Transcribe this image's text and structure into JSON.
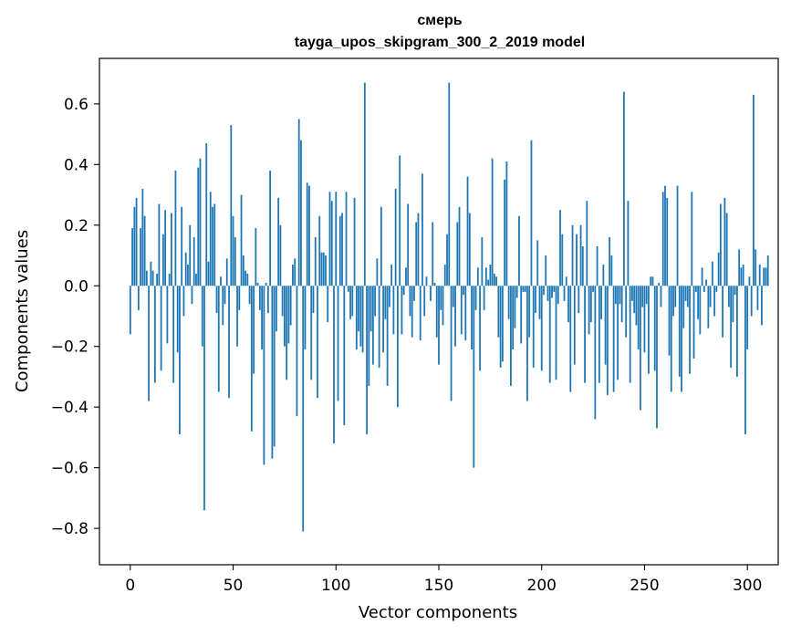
{
  "chart_data": {
    "type": "bar",
    "title": "смерь",
    "subtitle": "tayga_upos_skipgram_300_2_2019 model",
    "xlabel": "Vector components",
    "ylabel": "Components values",
    "xlim": [
      -15,
      315
    ],
    "ylim": [
      -0.92,
      0.75
    ],
    "xticks": [
      0,
      50,
      100,
      150,
      200,
      250,
      300
    ],
    "xtick_labels": [
      "0",
      "50",
      "100",
      "150",
      "200",
      "250",
      "300"
    ],
    "yticks": [
      -0.8,
      -0.6,
      -0.4,
      -0.2,
      0.0,
      0.2,
      0.4,
      0.6
    ],
    "ytick_labels": [
      "−0.8",
      "−0.6",
      "−0.4",
      "−0.2",
      "0.0",
      "0.2",
      "0.4",
      "0.6"
    ],
    "bar_color": "#1f77b4",
    "grid": false,
    "series": [
      {
        "values": [
          -0.16,
          0.19,
          0.26,
          0.29,
          -0.08,
          0.19,
          0.32,
          0.23,
          0.05,
          -0.38,
          0.08,
          0.05,
          -0.32,
          0.04,
          0.27,
          -0.28,
          0.17,
          0.25,
          -0.19,
          0.04,
          0.24,
          -0.32,
          0.38,
          -0.22,
          -0.49,
          0.26,
          -0.1,
          0.11,
          0.07,
          0.2,
          -0.06,
          0.16,
          0.04,
          0.39,
          0.42,
          -0.2,
          -0.74,
          0.47,
          0.08,
          0.31,
          0.26,
          0.27,
          -0.09,
          -0.35,
          0.03,
          -0.13,
          -0.06,
          0.09,
          -0.37,
          0.53,
          0.23,
          0.16,
          -0.2,
          -0.08,
          0.3,
          0.1,
          0.05,
          0.04,
          -0.06,
          -0.48,
          -0.29,
          0.19,
          0.01,
          -0.08,
          -0.21,
          -0.59,
          0.01,
          -0.09,
          0.38,
          -0.57,
          -0.53,
          -0.15,
          0.29,
          0.2,
          -0.1,
          -0.2,
          -0.31,
          -0.19,
          -0.13,
          0.07,
          0.09,
          -0.43,
          0.55,
          0.48,
          -0.81,
          -0.21,
          0.34,
          0.33,
          -0.31,
          -0.09,
          0.16,
          -0.37,
          0.23,
          0.11,
          0.11,
          0.1,
          -0.12,
          0.31,
          0.28,
          -0.52,
          0.31,
          -0.38,
          0.23,
          0.24,
          -0.46,
          0.31,
          -0.02,
          -0.11,
          -0.1,
          0.29,
          -0.21,
          -0.15,
          -0.2,
          -0.22,
          0.67,
          -0.49,
          -0.33,
          -0.15,
          -0.26,
          -0.1,
          0.09,
          -0.27,
          0.26,
          -0.22,
          -0.11,
          -0.33,
          -0.07,
          0.07,
          -0.16,
          0.32,
          -0.4,
          0.43,
          -0.16,
          -0.03,
          0.06,
          0.27,
          -0.1,
          -0.17,
          -0.05,
          0.21,
          0.24,
          -0.18,
          0.37,
          -0.1,
          0.03,
          0.0,
          -0.05,
          0.21,
          0.01,
          -0.17,
          -0.26,
          -0.08,
          -0.13,
          0.07,
          0.17,
          0.67,
          -0.38,
          -0.07,
          -0.2,
          0.21,
          0.26,
          -0.16,
          -0.03,
          -0.18,
          0.36,
          0.24,
          -0.21,
          -0.6,
          -0.08,
          0.06,
          -0.28,
          0.16,
          -0.08,
          0.06,
          0.02,
          0.07,
          0.42,
          0.04,
          0.03,
          -0.17,
          -0.27,
          -0.25,
          0.35,
          0.41,
          -0.11,
          -0.33,
          -0.21,
          -0.14,
          -0.04,
          0.23,
          -0.19,
          -0.02,
          -0.02,
          -0.38,
          -0.17,
          0.48,
          -0.27,
          -0.09,
          0.15,
          -0.11,
          -0.28,
          -0.03,
          0.1,
          -0.05,
          -0.32,
          -0.04,
          -0.02,
          -0.31,
          -0.06,
          0.25,
          0.17,
          -0.05,
          0.03,
          -0.12,
          -0.35,
          0.2,
          -0.26,
          0.17,
          -0.09,
          0.2,
          0.13,
          -0.32,
          0.28,
          -0.16,
          -0.12,
          -0.02,
          -0.44,
          0.13,
          -0.32,
          -0.11,
          0.07,
          -0.26,
          -0.36,
          0.16,
          0.1,
          -0.35,
          -0.06,
          -0.31,
          -0.06,
          -0.12,
          0.64,
          -0.17,
          0.28,
          -0.32,
          -0.05,
          -0.09,
          -0.13,
          -0.21,
          -0.41,
          -0.07,
          -0.22,
          -0.06,
          -0.29,
          0.03,
          0.03,
          -0.28,
          -0.47,
          0.01,
          -0.07,
          0.31,
          0.33,
          0.29,
          -0.23,
          -0.35,
          -0.1,
          -0.07,
          0.33,
          -0.3,
          -0.35,
          -0.14,
          -0.05,
          -0.07,
          -0.29,
          0.31,
          -0.24,
          -0.02,
          -0.11,
          -0.16,
          0.06,
          -0.02,
          0.02,
          -0.14,
          -0.07,
          0.08,
          -0.1,
          -0.02,
          0.11,
          0.27,
          -0.17,
          0.29,
          0.24,
          -0.07,
          -0.27,
          -0.12,
          -0.03,
          -0.3,
          0.12,
          0.06,
          0.07,
          -0.49,
          -0.21,
          0.03,
          -0.1,
          0.63,
          0.12,
          -0.08,
          0.07,
          -0.13,
          0.06,
          0.06,
          0.1
        ]
      }
    ]
  }
}
